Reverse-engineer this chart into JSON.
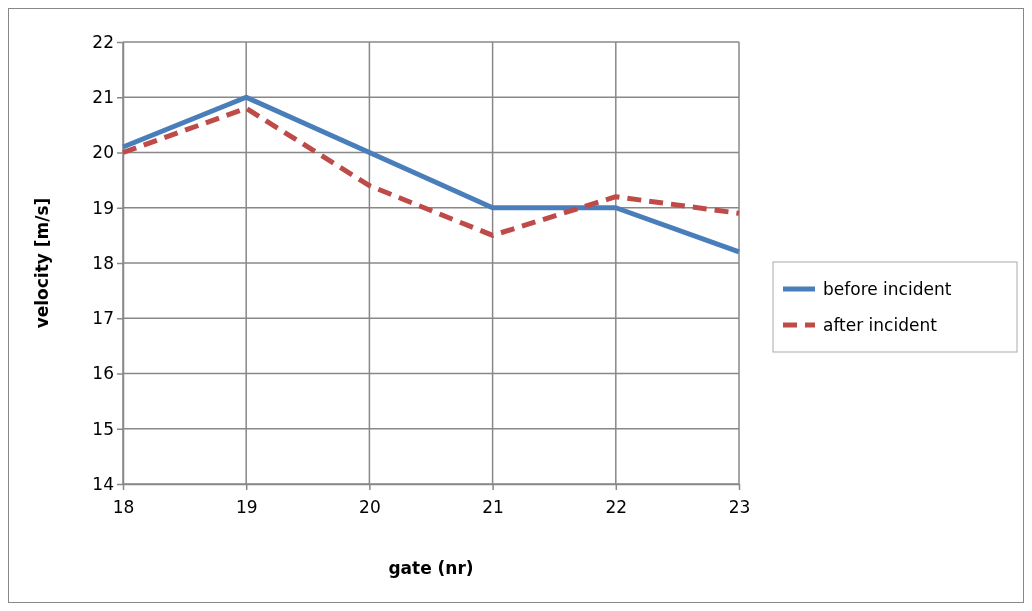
{
  "chart_data": {
    "type": "line",
    "xlabel": "gate (nr)",
    "ylabel": "velocity [m/s]",
    "x": [
      18,
      19,
      20,
      21,
      22,
      23
    ],
    "xlim": [
      18,
      23
    ],
    "xticks": [
      18,
      19,
      20,
      21,
      22,
      23
    ],
    "ylim": [
      14,
      22
    ],
    "yticks": [
      14,
      15,
      16,
      17,
      18,
      19,
      20,
      21,
      22
    ],
    "grid": true,
    "legend": "right",
    "marker": "none",
    "series": [
      {
        "name": "before incident",
        "color": "#4a7ebb",
        "line_style": "solid",
        "values": [
          20.1,
          21,
          20,
          19,
          19,
          18.2
        ]
      },
      {
        "name": "after incident",
        "color": "#be4b48",
        "line_style": "dashed",
        "values": [
          20,
          20.8,
          19.4,
          18.5,
          19.2,
          18.9
        ]
      }
    ]
  }
}
